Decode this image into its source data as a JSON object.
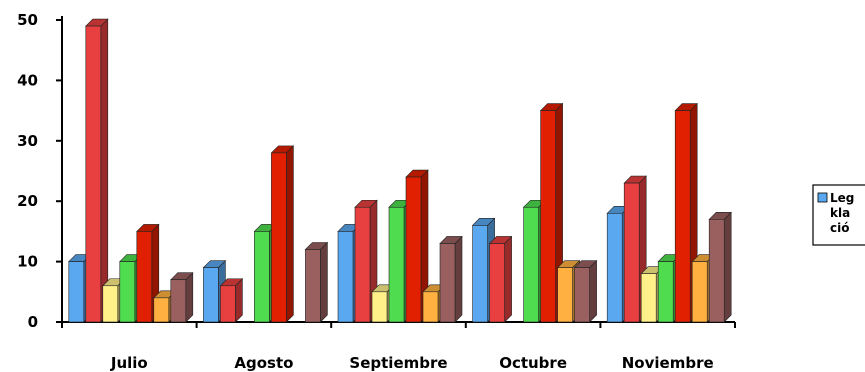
{
  "chart_data": {
    "type": "bar",
    "categories": [
      "Julio",
      "Agosto",
      "Septiembre",
      "Octubre",
      "Noviembre"
    ],
    "series": [
      {
        "color": "#5aa8f0",
        "values": [
          10,
          9,
          15,
          16,
          18
        ]
      },
      {
        "color": "#e84040",
        "values": [
          49,
          6,
          19,
          13,
          23
        ]
      },
      {
        "color": "#fff08a",
        "values": [
          6,
          0,
          5,
          0,
          8
        ]
      },
      {
        "color": "#4fdd4f",
        "values": [
          10,
          15,
          19,
          19,
          10
        ]
      },
      {
        "color": "#e02000",
        "values": [
          15,
          28,
          24,
          35,
          35
        ]
      },
      {
        "color": "#ffb040",
        "values": [
          4,
          0,
          5,
          9,
          10
        ]
      },
      {
        "color": "#9a6060",
        "values": [
          7,
          12,
          13,
          9,
          17
        ]
      }
    ],
    "ylim": [
      0,
      50
    ],
    "yticks": [
      0,
      10,
      20,
      30,
      40,
      50
    ],
    "grid": false,
    "legend": {
      "placement": "right",
      "lines": [
        "Leg",
        "kla",
        "ció"
      ]
    }
  }
}
